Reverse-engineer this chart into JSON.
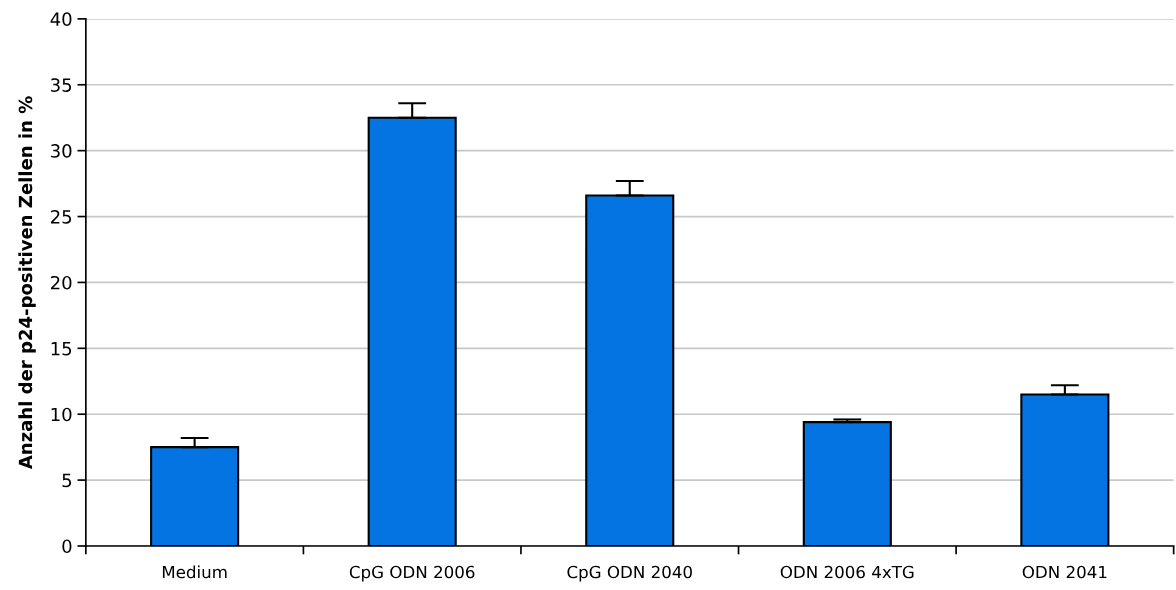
{
  "chart_data": {
    "type": "bar",
    "ylabel": "Anzahl der p24-positiven Zellen in %",
    "categories": [
      "Medium",
      "CpG ODN 2006",
      "CpG ODN 2040",
      "ODN 2006 4xTG",
      "ODN 2041"
    ],
    "values": [
      7.5,
      32.5,
      26.6,
      9.4,
      11.5
    ],
    "errors": [
      [
        7.5,
        8.2
      ],
      [
        32.5,
        33.6
      ],
      [
        26.6,
        27.7
      ],
      [
        9.4,
        9.6
      ],
      [
        11.5,
        12.2
      ]
    ],
    "color": "#0474e2",
    "ylim": [
      0,
      40
    ],
    "yticks": [
      0,
      5,
      10,
      15,
      20,
      25,
      30,
      35,
      40
    ],
    "grid": "y",
    "legend": false
  }
}
